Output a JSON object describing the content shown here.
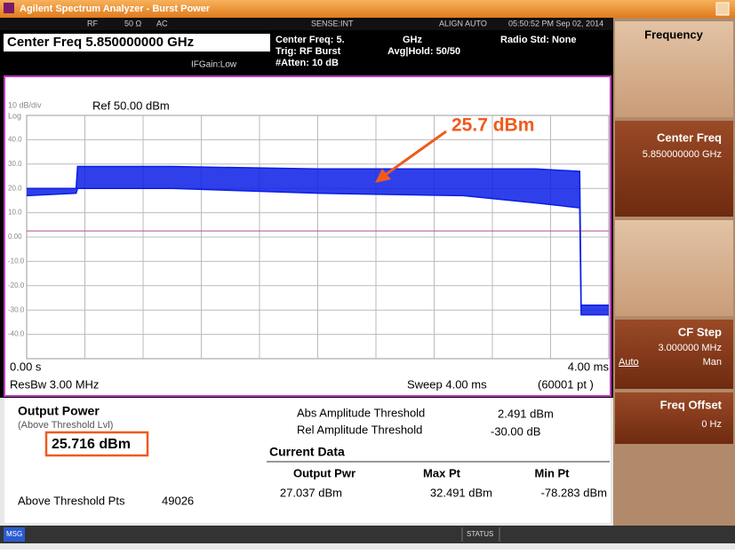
{
  "window": {
    "title": "Agilent Spectrum Analyzer - Burst Power"
  },
  "status_row": {
    "rf": "RF",
    "impedance": "50 Ω",
    "coupling": "AC",
    "sense": "SENSE:INT",
    "align": "ALIGN AUTO",
    "timestamp": "05:50:52 PM Sep 02, 2014"
  },
  "header": {
    "center_freq": "Center Freq 5.850000000 GHz",
    "if_gain": "IFGain:Low",
    "center_freq_short": "Center Freq: 5.",
    "ghz": "GHz",
    "trig": "Trig: RF Burst",
    "atten": "#Atten: 10 dB",
    "avg_hold": "Avg|Hold: 50/50",
    "radio_std": "Radio Std: None"
  },
  "graph": {
    "type": "line",
    "scale": "10 dB/div",
    "scale_type": "Log",
    "ref": "Ref 50.00 dBm",
    "ylim": [
      -50,
      50
    ],
    "yticks": [
      {
        "value": 40,
        "label": "40.0"
      },
      {
        "value": 30,
        "label": "30.0"
      },
      {
        "value": 20,
        "label": "20.0"
      },
      {
        "value": 10,
        "label": "10.0"
      },
      {
        "value": 0,
        "label": "0.00"
      },
      {
        "value": -10,
        "label": "-10.0"
      },
      {
        "value": -20,
        "label": "-20.0"
      },
      {
        "value": -30,
        "label": "-30.0"
      },
      {
        "value": -40,
        "label": "-40.0"
      }
    ],
    "xlim": [
      0,
      4
    ],
    "x_start_label": "0.00 s",
    "x_end_label": "4.00 ms",
    "res_bw": "ResBw 3.00 MHz",
    "sweep": "Sweep 4.00 ms",
    "points": "(60001 pt )",
    "annotation": "25.7 dBm",
    "annotation_color": "#f05a1e",
    "threshold_color": "#b0508a",
    "trace": {
      "color": "#0a1ee6",
      "x": [
        0,
        0.34,
        0.35,
        1,
        2,
        3,
        3.5,
        3.8,
        3.81,
        4
      ],
      "upper": [
        20,
        20,
        29,
        29,
        28,
        28,
        28,
        27,
        -28,
        -28
      ],
      "lower": [
        17,
        18,
        20,
        20,
        18,
        17,
        14,
        12,
        -32,
        -32
      ]
    }
  },
  "results": {
    "title": "Output Power",
    "subtitle": "(Above Threshold Lvl)",
    "output_power": "25.716 dBm",
    "abs_threshold_label": "Abs Amplitude Threshold",
    "abs_threshold": {
      "value": 2.491,
      "label": "2.491 dBm"
    },
    "rel_threshold_label": "Rel Amplitude Threshold",
    "rel_threshold": "-30.00 dB",
    "current_data": "Current Data",
    "columns": [
      "Output Pwr",
      "Max Pt",
      "Min Pt"
    ],
    "row": [
      "27.037 dBm",
      "32.491 dBm",
      "-78.283 dBm"
    ],
    "above_threshold_label": "Above Threshold Pts",
    "above_threshold_pts": "49026"
  },
  "softkeys": {
    "menu": "Frequency",
    "keys": [
      {
        "label": "Center Freq",
        "value": "5.850000000 GHz"
      },
      {
        "label": "CF Step",
        "value": "3.000000 MHz",
        "options": [
          "Auto",
          "Man"
        ]
      },
      {
        "label": "Freq Offset",
        "value": "0 Hz"
      }
    ]
  },
  "status_bar": {
    "msg": "MSG",
    "status": "STATUS"
  }
}
